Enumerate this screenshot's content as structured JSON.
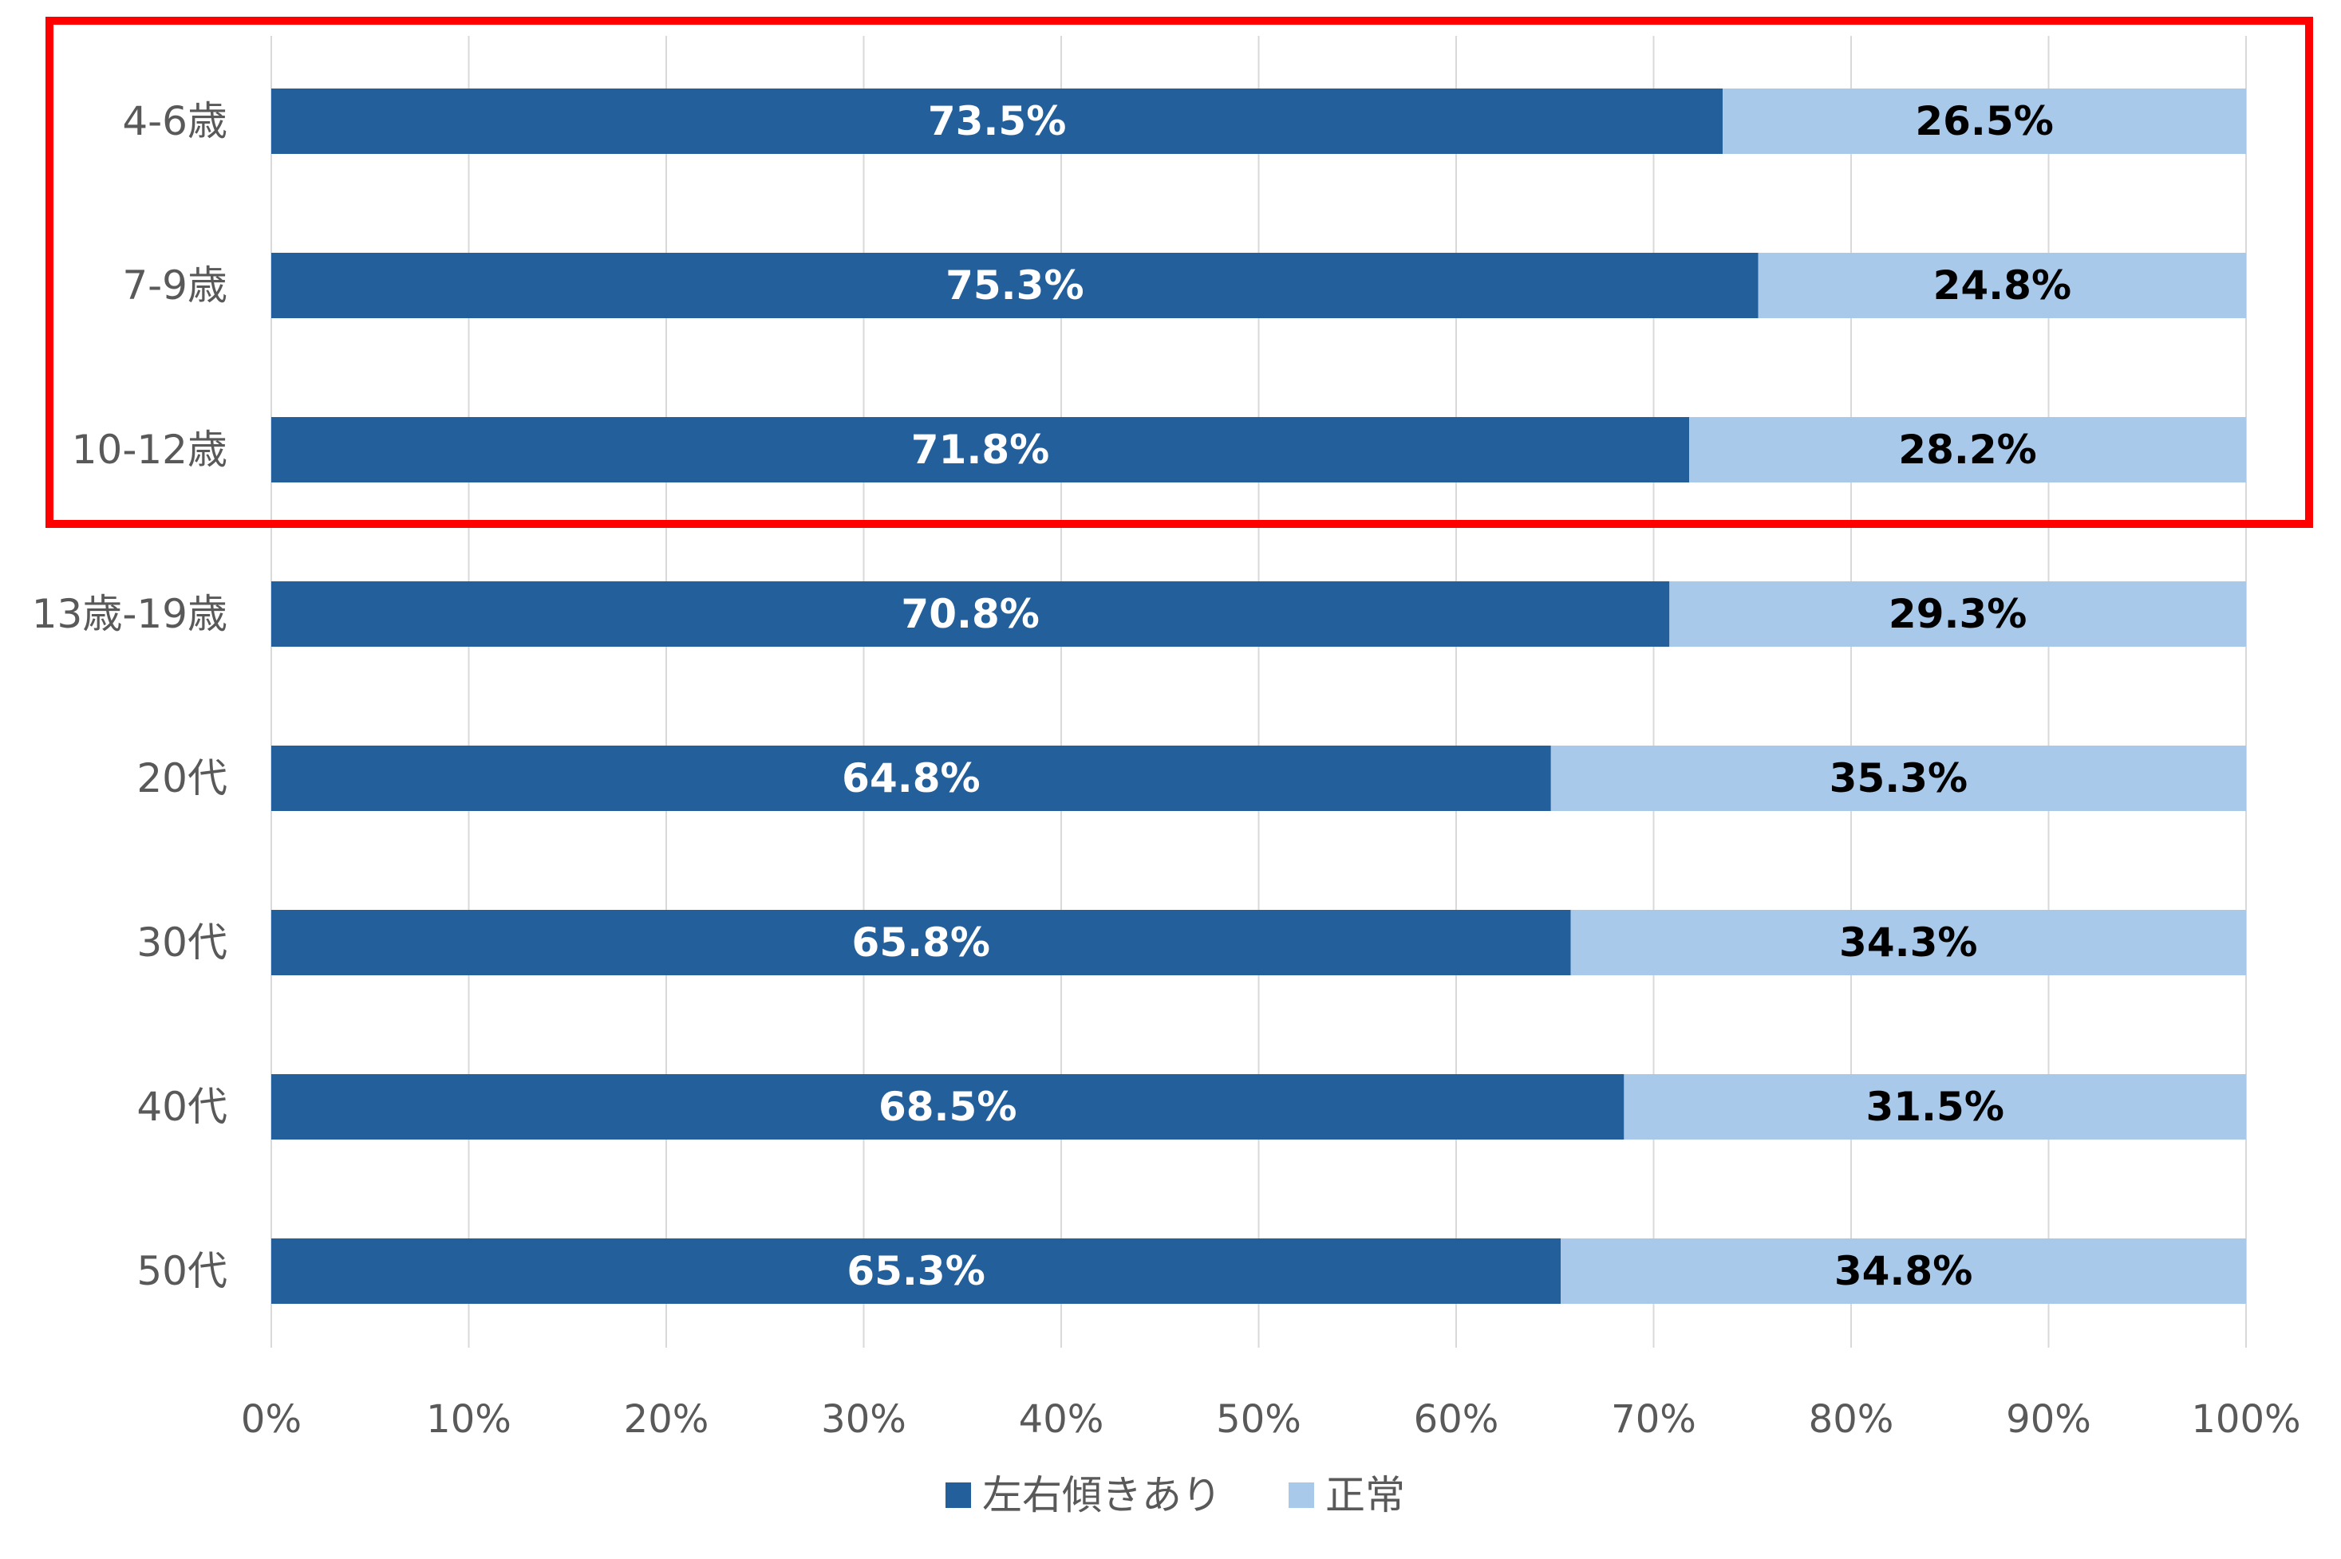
{
  "chart_data": {
    "type": "bar",
    "orientation": "horizontal",
    "stacked": true,
    "percent_stacked": true,
    "categories": [
      "4-6歳",
      "7-9歳",
      "10-12歳",
      "13歳-19歳",
      "20代",
      "30代",
      "40代",
      "50代"
    ],
    "series": [
      {
        "name": "左右傾きあり",
        "color": "#235f9a",
        "label_color": "#ffffff",
        "values": [
          73.5,
          75.3,
          71.8,
          70.8,
          64.8,
          65.8,
          68.5,
          65.3
        ],
        "labels": [
          "73.5%",
          "75.3%",
          "71.8%",
          "70.8%",
          "64.8%",
          "65.8%",
          "68.5%",
          "65.3%"
        ]
      },
      {
        "name": "正常",
        "color": "#a8c9ea",
        "label_color": "#000000",
        "values": [
          26.5,
          24.8,
          28.2,
          29.3,
          35.3,
          34.3,
          31.5,
          34.8
        ],
        "labels": [
          "26.5%",
          "24.8%",
          "28.2%",
          "29.3%",
          "35.3%",
          "34.3%",
          "31.5%",
          "34.8%"
        ]
      }
    ],
    "xaxis": {
      "range": [
        0,
        100
      ],
      "ticks": [
        0,
        10,
        20,
        30,
        40,
        50,
        60,
        70,
        80,
        90,
        100
      ],
      "tick_labels": [
        "0%",
        "10%",
        "20%",
        "30%",
        "40%",
        "50%",
        "60%",
        "70%",
        "80%",
        "90%",
        "100%"
      ]
    },
    "grid": true,
    "legend_position": "bottom",
    "highlight": {
      "categories": [
        "4-6歳",
        "7-9歳",
        "10-12歳"
      ],
      "color": "#ff0000"
    }
  }
}
